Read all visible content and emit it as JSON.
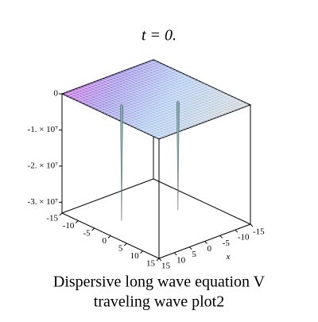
{
  "chart_data": {
    "type": "surface3d",
    "title": "t = 0.",
    "caption": [
      "Dispersive long wave equation V",
      "traveling wave plot2"
    ],
    "xlabel": "x",
    "xlim": [
      -15,
      15
    ],
    "ylim": [
      -15,
      15
    ],
    "zlim": [
      -33000000,
      0
    ],
    "xticks": [
      -15,
      -10,
      -5,
      0,
      5,
      10,
      15
    ],
    "yticks": [
      -15,
      -10,
      -5,
      0,
      5,
      10,
      15
    ],
    "zticks": [
      0,
      {
        "value": -10000000,
        "label": "-1. × 10⁷"
      },
      {
        "value": -20000000,
        "label": "-2. × 10⁷"
      },
      {
        "value": -30000000,
        "label": "-3. × 10⁷"
      }
    ],
    "minima": {
      "x": [
        8.5,
        -3
      ],
      "y": [
        -2.7,
        3.9
      ],
      "z": [
        -32000000,
        -30000000
      ]
    }
  }
}
